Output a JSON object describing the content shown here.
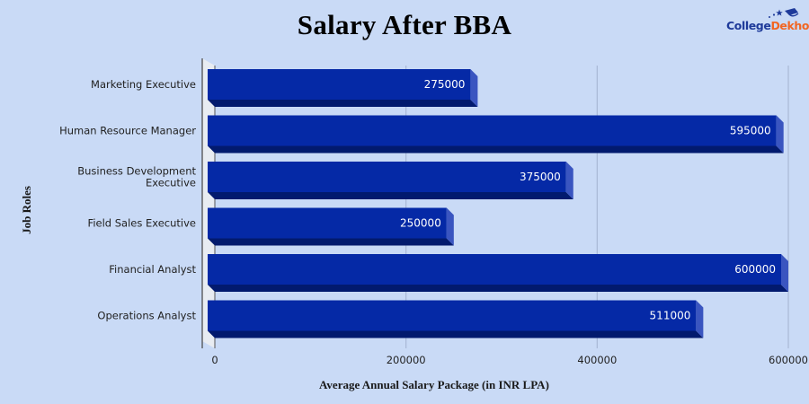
{
  "title": "Salary After BBA",
  "logo": {
    "part1": "College",
    "part2": "Dekho"
  },
  "colors": {
    "background": "#c9daf6",
    "bar_front": "#0529a6",
    "bar_bottom": "#021a6e",
    "bar_side": "#3a55c0",
    "grid": "#a9b8d6",
    "wall": "#e8ecf2"
  },
  "chart_data": {
    "type": "bar",
    "orientation": "horizontal",
    "style": "3d",
    "title": "Salary After BBA",
    "xlabel": "Average Annual Salary Package (in INR LPA)",
    "ylabel": "Job Roles",
    "categories": [
      "Marketing Executive",
      "Human Resource Manager",
      "Business Development Executive",
      "Field Sales Executive",
      "Financial Analyst",
      "Operations Analyst"
    ],
    "category_lines": [
      [
        "Marketing Executive"
      ],
      [
        "Human Resource Manager"
      ],
      [
        "Business Development",
        "Executive"
      ],
      [
        "Field Sales Executive"
      ],
      [
        "Financial Analyst"
      ],
      [
        "Operations Analyst"
      ]
    ],
    "values": [
      275000,
      595000,
      375000,
      250000,
      600000,
      511000
    ],
    "value_labels": [
      "275000",
      "595000",
      "375000",
      "250000",
      "600000",
      "511000"
    ],
    "xticks": [
      0,
      200000,
      400000,
      600000
    ],
    "xtick_labels": [
      "0",
      "200000",
      "400000",
      "600000"
    ],
    "xlim": [
      0,
      600000
    ],
    "grid": true,
    "legend": null
  }
}
